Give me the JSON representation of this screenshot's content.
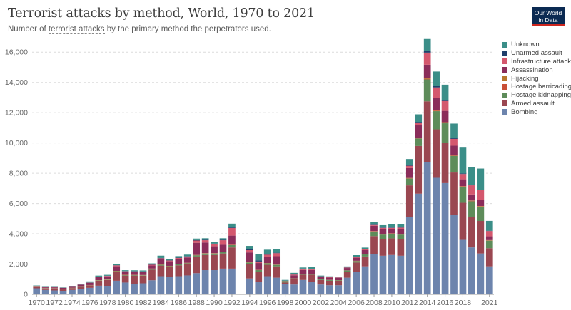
{
  "header": {
    "title": "Terrorist attacks by method, World, 1970 to 2021",
    "subtitle_prefix": "Number of",
    "subtitle_term": "terrorist attacks",
    "subtitle_suffix": "by the primary method the perpetrators used.",
    "logo_line1": "Our World",
    "logo_line2": "in Data"
  },
  "colors": {
    "Bombing": "#6d84ad",
    "Armed assault": "#9a4751",
    "Hostage kidnapping": "#5e8c5a",
    "Hostage barricading": "#c94f36",
    "Hijacking": "#b8782d",
    "Assassination": "#8b2d5a",
    "Infrastructure attack": "#d4586e",
    "Unarmed assault": "#203f6b",
    "Unknown": "#3b8e88"
  },
  "chart_data": {
    "type": "bar",
    "stacked": true,
    "title": "Terrorist attacks by method, World, 1970 to 2021",
    "ylim": [
      0,
      17000
    ],
    "yticks": [
      0,
      2000,
      4000,
      6000,
      8000,
      10000,
      12000,
      14000,
      16000
    ],
    "ytick_labels": [
      "0",
      "2,000",
      "4,000",
      "6,000",
      "8,000",
      "10,000",
      "12,000",
      "14,000",
      "16,000"
    ],
    "xtick_labels": [
      "1970",
      "1972",
      "1974",
      "1976",
      "1978",
      "1980",
      "1982",
      "1984",
      "1986",
      "1988",
      "1990",
      "1992",
      "1994",
      "1996",
      "1998",
      "2000",
      "2002",
      "2004",
      "2006",
      "2008",
      "2010",
      "2012",
      "2014",
      "2016",
      "2018",
      "2021"
    ],
    "legend_position": "right",
    "legend_order": [
      "Unknown",
      "Unarmed assault",
      "Infrastructure attack",
      "Assassination",
      "Hijacking",
      "Hostage barricading",
      "Hostage kidnapping",
      "Armed assault",
      "Bombing"
    ],
    "categories": [
      1970,
      1971,
      1972,
      1973,
      1974,
      1975,
      1976,
      1977,
      1978,
      1979,
      1980,
      1981,
      1982,
      1983,
      1984,
      1985,
      1986,
      1987,
      1988,
      1989,
      1990,
      1991,
      1992,
      1994,
      1995,
      1996,
      1997,
      1998,
      1999,
      2000,
      2001,
      2002,
      2003,
      2004,
      2005,
      2006,
      2007,
      2008,
      2009,
      2010,
      2011,
      2012,
      2013,
      2014,
      2015,
      2016,
      2017,
      2018,
      2019,
      2020,
      2021
    ],
    "series": [
      {
        "name": "Bombing",
        "values": [
          400,
          290,
          260,
          220,
          290,
          360,
          430,
          570,
          550,
          900,
          780,
          680,
          730,
          930,
          1200,
          1150,
          1200,
          1250,
          1400,
          1600,
          1600,
          1700,
          1700,
          1050,
          800,
          1200,
          1100,
          700,
          650,
          950,
          800,
          650,
          600,
          600,
          1100,
          1500,
          1850,
          2650,
          2550,
          2600,
          2550,
          5100,
          6650,
          8750,
          7700,
          7350,
          5250,
          3600,
          3100,
          2700,
          1850
        ]
      },
      {
        "name": "Armed assault",
        "values": [
          80,
          100,
          120,
          120,
          120,
          150,
          160,
          330,
          400,
          600,
          460,
          560,
          500,
          700,
          700,
          650,
          720,
          750,
          1100,
          1000,
          1000,
          1000,
          1400,
          950,
          700,
          750,
          750,
          80,
          350,
          350,
          500,
          300,
          300,
          280,
          400,
          600,
          650,
          1200,
          1100,
          1100,
          1100,
          2100,
          3150,
          4000,
          3200,
          2650,
          2800,
          2450,
          2000,
          2150,
          1200
        ]
      },
      {
        "name": "Hostage kidnapping",
        "values": [
          10,
          10,
          10,
          10,
          10,
          10,
          10,
          20,
          20,
          30,
          30,
          30,
          30,
          50,
          60,
          60,
          60,
          60,
          80,
          100,
          100,
          100,
          150,
          100,
          100,
          100,
          100,
          50,
          50,
          50,
          50,
          50,
          50,
          50,
          80,
          100,
          150,
          300,
          300,
          300,
          300,
          450,
          500,
          1450,
          1200,
          1300,
          1100,
          1050,
          1050,
          950,
          500
        ]
      },
      {
        "name": "Hostage barricading",
        "values": [
          5,
          5,
          5,
          5,
          5,
          5,
          5,
          10,
          10,
          15,
          15,
          10,
          10,
          15,
          15,
          15,
          15,
          15,
          15,
          15,
          15,
          15,
          20,
          10,
          10,
          10,
          10,
          5,
          5,
          5,
          5,
          5,
          5,
          5,
          5,
          10,
          10,
          15,
          15,
          15,
          15,
          20,
          30,
          40,
          40,
          40,
          40,
          30,
          30,
          20,
          20
        ]
      },
      {
        "name": "Hijacking",
        "values": [
          10,
          10,
          10,
          10,
          10,
          10,
          10,
          10,
          10,
          10,
          10,
          10,
          10,
          10,
          10,
          10,
          10,
          10,
          10,
          10,
          10,
          10,
          10,
          10,
          10,
          10,
          10,
          5,
          5,
          5,
          5,
          5,
          5,
          5,
          5,
          10,
          10,
          15,
          15,
          15,
          15,
          20,
          30,
          30,
          30,
          30,
          30,
          20,
          20,
          20,
          15
        ]
      },
      {
        "name": "Assassination",
        "values": [
          50,
          50,
          60,
          60,
          60,
          100,
          150,
          200,
          200,
          300,
          200,
          200,
          200,
          200,
          350,
          300,
          350,
          350,
          800,
          700,
          450,
          450,
          600,
          650,
          450,
          400,
          550,
          50,
          200,
          250,
          250,
          150,
          150,
          150,
          150,
          200,
          250,
          350,
          350,
          300,
          350,
          650,
          800,
          900,
          800,
          750,
          600,
          450,
          400,
          400,
          250
        ]
      },
      {
        "name": "Infrastructure attack",
        "values": [
          10,
          10,
          10,
          10,
          10,
          10,
          10,
          30,
          30,
          60,
          30,
          30,
          30,
          50,
          50,
          50,
          50,
          70,
          150,
          150,
          150,
          300,
          500,
          150,
          100,
          150,
          200,
          10,
          50,
          80,
          70,
          30,
          30,
          30,
          30,
          50,
          50,
          50,
          60,
          60,
          80,
          150,
          150,
          800,
          700,
          650,
          450,
          350,
          600,
          650,
          350
        ]
      },
      {
        "name": "Unarmed assault",
        "values": [
          5,
          5,
          5,
          5,
          5,
          5,
          5,
          10,
          10,
          10,
          10,
          10,
          10,
          20,
          20,
          20,
          20,
          20,
          30,
          30,
          30,
          30,
          40,
          80,
          80,
          30,
          30,
          5,
          10,
          15,
          15,
          10,
          10,
          10,
          15,
          20,
          20,
          30,
          30,
          30,
          30,
          50,
          80,
          100,
          100,
          80,
          60,
          40,
          40,
          20,
          20
        ]
      },
      {
        "name": "Unknown",
        "values": [
          20,
          20,
          20,
          20,
          20,
          30,
          30,
          60,
          60,
          100,
          60,
          60,
          60,
          70,
          150,
          100,
          100,
          100,
          100,
          100,
          100,
          100,
          250,
          200,
          400,
          300,
          250,
          50,
          100,
          70,
          100,
          40,
          40,
          40,
          60,
          100,
          100,
          150,
          150,
          200,
          200,
          400,
          500,
          800,
          950,
          1000,
          950,
          1750,
          1150,
          1400,
          650
        ]
      }
    ]
  }
}
